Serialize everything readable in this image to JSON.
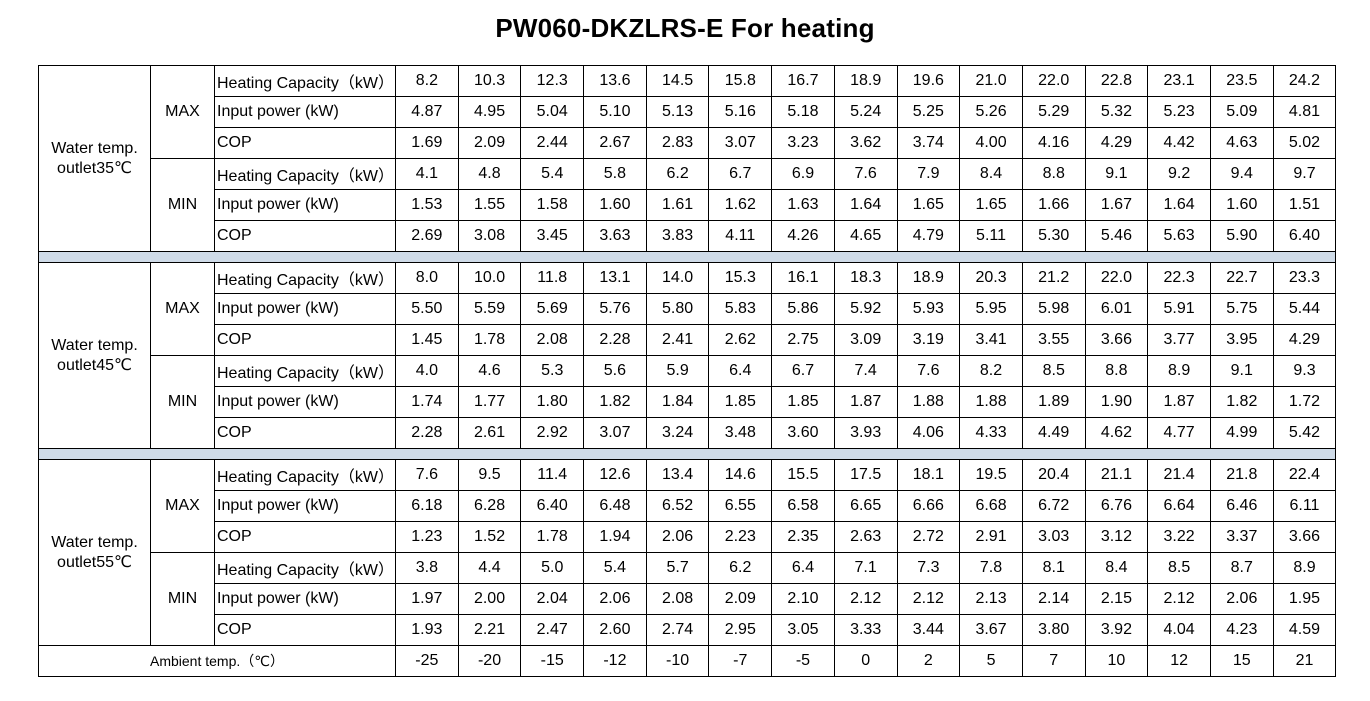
{
  "title": "PW060-DKZLRS-E For heating",
  "separator_color": "#cfdbe8",
  "groups": [
    {
      "label_line1": "Water temp.",
      "label_line2": "outlet35℃",
      "modes": [
        {
          "label": "MAX",
          "rows": [
            {
              "label": "Heating Capacity（kW）",
              "values": [
                "8.2",
                "10.3",
                "12.3",
                "13.6",
                "14.5",
                "15.8",
                "16.7",
                "18.9",
                "19.6",
                "21.0",
                "22.0",
                "22.8",
                "23.1",
                "23.5",
                "24.2"
              ]
            },
            {
              "label": "Input power (kW)",
              "values": [
                "4.87",
                "4.95",
                "5.04",
                "5.10",
                "5.13",
                "5.16",
                "5.18",
                "5.24",
                "5.25",
                "5.26",
                "5.29",
                "5.32",
                "5.23",
                "5.09",
                "4.81"
              ]
            },
            {
              "label": "COP",
              "values": [
                "1.69",
                "2.09",
                "2.44",
                "2.67",
                "2.83",
                "3.07",
                "3.23",
                "3.62",
                "3.74",
                "4.00",
                "4.16",
                "4.29",
                "4.42",
                "4.63",
                "5.02"
              ]
            }
          ]
        },
        {
          "label": "MIN",
          "rows": [
            {
              "label": "Heating Capacity（kW）",
              "values": [
                "4.1",
                "4.8",
                "5.4",
                "5.8",
                "6.2",
                "6.7",
                "6.9",
                "7.6",
                "7.9",
                "8.4",
                "8.8",
                "9.1",
                "9.2",
                "9.4",
                "9.7"
              ]
            },
            {
              "label": "Input power (kW)",
              "values": [
                "1.53",
                "1.55",
                "1.58",
                "1.60",
                "1.61",
                "1.62",
                "1.63",
                "1.64",
                "1.65",
                "1.65",
                "1.66",
                "1.67",
                "1.64",
                "1.60",
                "1.51"
              ]
            },
            {
              "label": "COP",
              "values": [
                "2.69",
                "3.08",
                "3.45",
                "3.63",
                "3.83",
                "4.11",
                "4.26",
                "4.65",
                "4.79",
                "5.11",
                "5.30",
                "5.46",
                "5.63",
                "5.90",
                "6.40"
              ]
            }
          ]
        }
      ]
    },
    {
      "label_line1": "Water temp.",
      "label_line2": "outlet45℃",
      "modes": [
        {
          "label": "MAX",
          "rows": [
            {
              "label": "Heating Capacity（kW）",
              "values": [
                "8.0",
                "10.0",
                "11.8",
                "13.1",
                "14.0",
                "15.3",
                "16.1",
                "18.3",
                "18.9",
                "20.3",
                "21.2",
                "22.0",
                "22.3",
                "22.7",
                "23.3"
              ]
            },
            {
              "label": "Input power (kW)",
              "values": [
                "5.50",
                "5.59",
                "5.69",
                "5.76",
                "5.80",
                "5.83",
                "5.86",
                "5.92",
                "5.93",
                "5.95",
                "5.98",
                "6.01",
                "5.91",
                "5.75",
                "5.44"
              ]
            },
            {
              "label": "COP",
              "values": [
                "1.45",
                "1.78",
                "2.08",
                "2.28",
                "2.41",
                "2.62",
                "2.75",
                "3.09",
                "3.19",
                "3.41",
                "3.55",
                "3.66",
                "3.77",
                "3.95",
                "4.29"
              ]
            }
          ]
        },
        {
          "label": "MIN",
          "rows": [
            {
              "label": "Heating Capacity（kW）",
              "values": [
                "4.0",
                "4.6",
                "5.3",
                "5.6",
                "5.9",
                "6.4",
                "6.7",
                "7.4",
                "7.6",
                "8.2",
                "8.5",
                "8.8",
                "8.9",
                "9.1",
                "9.3"
              ]
            },
            {
              "label": "Input power (kW)",
              "values": [
                "1.74",
                "1.77",
                "1.80",
                "1.82",
                "1.84",
                "1.85",
                "1.85",
                "1.87",
                "1.88",
                "1.88",
                "1.89",
                "1.90",
                "1.87",
                "1.82",
                "1.72"
              ]
            },
            {
              "label": "COP",
              "values": [
                "2.28",
                "2.61",
                "2.92",
                "3.07",
                "3.24",
                "3.48",
                "3.60",
                "3.93",
                "4.06",
                "4.33",
                "4.49",
                "4.62",
                "4.77",
                "4.99",
                "5.42"
              ]
            }
          ]
        }
      ]
    },
    {
      "label_line1": "Water temp.",
      "label_line2": "outlet55℃",
      "modes": [
        {
          "label": "MAX",
          "rows": [
            {
              "label": "Heating Capacity（kW）",
              "values": [
                "7.6",
                "9.5",
                "11.4",
                "12.6",
                "13.4",
                "14.6",
                "15.5",
                "17.5",
                "18.1",
                "19.5",
                "20.4",
                "21.1",
                "21.4",
                "21.8",
                "22.4"
              ]
            },
            {
              "label": "Input power (kW)",
              "values": [
                "6.18",
                "6.28",
                "6.40",
                "6.48",
                "6.52",
                "6.55",
                "6.58",
                "6.65",
                "6.66",
                "6.68",
                "6.72",
                "6.76",
                "6.64",
                "6.46",
                "6.11"
              ]
            },
            {
              "label": "COP",
              "values": [
                "1.23",
                "1.52",
                "1.78",
                "1.94",
                "2.06",
                "2.23",
                "2.35",
                "2.63",
                "2.72",
                "2.91",
                "3.03",
                "3.12",
                "3.22",
                "3.37",
                "3.66"
              ]
            }
          ]
        },
        {
          "label": "MIN",
          "rows": [
            {
              "label": "Heating Capacity（kW）",
              "values": [
                "3.8",
                "4.4",
                "5.0",
                "5.4",
                "5.7",
                "6.2",
                "6.4",
                "7.1",
                "7.3",
                "7.8",
                "8.1",
                "8.4",
                "8.5",
                "8.7",
                "8.9"
              ]
            },
            {
              "label": "Input power (kW)",
              "values": [
                "1.97",
                "2.00",
                "2.04",
                "2.06",
                "2.08",
                "2.09",
                "2.10",
                "2.12",
                "2.12",
                "2.13",
                "2.14",
                "2.15",
                "2.12",
                "2.06",
                "1.95"
              ]
            },
            {
              "label": "COP",
              "values": [
                "1.93",
                "2.21",
                "2.47",
                "2.60",
                "2.74",
                "2.95",
                "3.05",
                "3.33",
                "3.44",
                "3.67",
                "3.80",
                "3.92",
                "4.04",
                "4.23",
                "4.59"
              ]
            }
          ]
        }
      ]
    }
  ],
  "ambient": {
    "label": "Ambient temp.（℃）",
    "values": [
      "-25",
      "-20",
      "-15",
      "-12",
      "-10",
      "-7",
      "-5",
      "0",
      "2",
      "5",
      "7",
      "10",
      "12",
      "15",
      "21"
    ]
  }
}
